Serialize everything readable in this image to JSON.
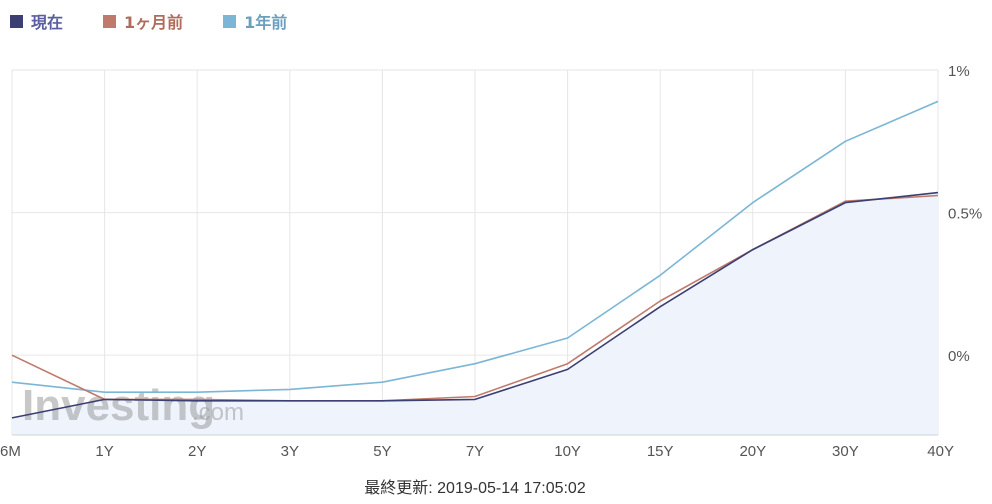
{
  "legend": {
    "items": [
      {
        "label": "現在",
        "color": "#3b3f72",
        "text_color": "#5a5ea0"
      },
      {
        "label": "1ヶ月前",
        "color": "#c07a6c",
        "text_color": "#b06b5c"
      },
      {
        "label": "1年前",
        "color": "#7bb6d6",
        "text_color": "#6b9fbd"
      }
    ]
  },
  "footer": {
    "label": "最終更新: 2019-05-14 17:05:02"
  },
  "watermark": {
    "main": "Investing",
    "suffix": ".com"
  },
  "chart_data": {
    "type": "line",
    "categories": [
      "6M",
      "1Y",
      "2Y",
      "3Y",
      "5Y",
      "7Y",
      "10Y",
      "15Y",
      "20Y",
      "30Y",
      "40Y"
    ],
    "y_ticks": [
      {
        "value": 1.0,
        "label": "1%"
      },
      {
        "value": 0.5,
        "label": "0.5%"
      },
      {
        "value": 0.0,
        "label": "0%"
      }
    ],
    "ylim": [
      -0.28,
      1.0
    ],
    "grid": true,
    "legend_position": "top-left",
    "series": [
      {
        "name": "1年前",
        "color": "#7bb6d6",
        "values": [
          -0.095,
          -0.13,
          -0.13,
          -0.12,
          -0.095,
          -0.03,
          0.06,
          0.28,
          0.535,
          0.75,
          0.89
        ],
        "fill": false
      },
      {
        "name": "1ヶ月前",
        "color": "#c07a6c",
        "values": [
          0.0,
          -0.155,
          -0.155,
          -0.16,
          -0.16,
          -0.145,
          -0.03,
          0.19,
          0.37,
          0.54,
          0.56
        ],
        "fill": false
      },
      {
        "name": "現在",
        "color": "#3b3f72",
        "values": [
          -0.22,
          -0.155,
          -0.16,
          -0.16,
          -0.16,
          -0.155,
          -0.05,
          0.17,
          0.37,
          0.535,
          0.57
        ],
        "fill": true,
        "fill_color": "#eef3fc"
      }
    ]
  }
}
